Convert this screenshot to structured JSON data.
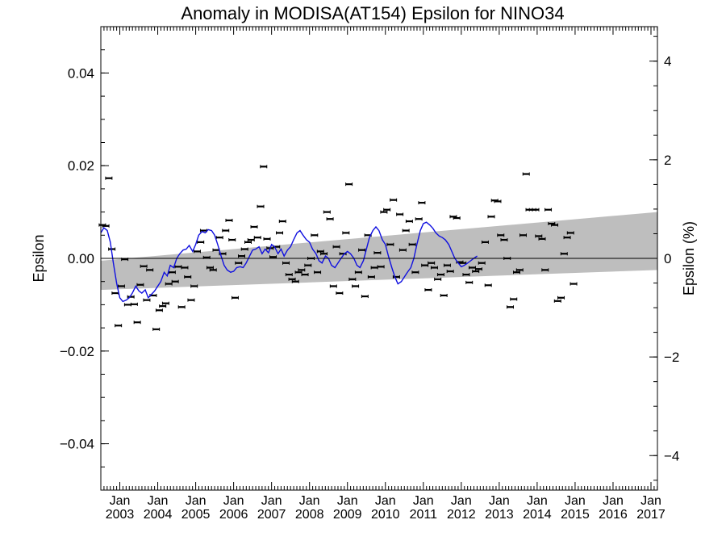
{
  "chart_data": {
    "type": "scatter",
    "title": "Anomaly in MODISA(AT154) Epsilon for NINO34",
    "ylabel": "Epsilon",
    "ylabel_right": "Epsilon (%)",
    "ylim": [
      -0.05,
      0.05
    ],
    "ylim_right": [
      -4.7,
      4.7
    ],
    "xlim": [
      2002.5,
      2017.17
    ],
    "yticks": [
      {
        "value": 0.04,
        "label": "0.04"
      },
      {
        "value": 0.02,
        "label": "0.02"
      },
      {
        "value": 0.0,
        "label": "0.00"
      },
      {
        "value": -0.02,
        "label": "−0.02"
      },
      {
        "value": -0.04,
        "label": "−0.04"
      }
    ],
    "yticks_right": [
      {
        "value": 4,
        "label": "4"
      },
      {
        "value": 2,
        "label": "2"
      },
      {
        "value": 0,
        "label": "0"
      },
      {
        "value": -2,
        "label": "−2"
      },
      {
        "value": -4,
        "label": "−4"
      }
    ],
    "xticks": [
      {
        "value": 2003.0,
        "month": "Jan",
        "year": "2003"
      },
      {
        "value": 2004.0,
        "month": "Jan",
        "year": "2004"
      },
      {
        "value": 2005.0,
        "month": "Jan",
        "year": "2005"
      },
      {
        "value": 2006.0,
        "month": "Jan",
        "year": "2006"
      },
      {
        "value": 2007.0,
        "month": "Jan",
        "year": "2007"
      },
      {
        "value": 2008.0,
        "month": "Jan",
        "year": "2008"
      },
      {
        "value": 2009.0,
        "month": "Jan",
        "year": "2009"
      },
      {
        "value": 2010.0,
        "month": "Jan",
        "year": "2010"
      },
      {
        "value": 2011.0,
        "month": "Jan",
        "year": "2011"
      },
      {
        "value": 2012.0,
        "month": "Jan",
        "year": "2012"
      },
      {
        "value": 2013.0,
        "month": "Jan",
        "year": "2013"
      },
      {
        "value": 2014.0,
        "month": "Jan",
        "year": "2014"
      },
      {
        "value": 2015.0,
        "month": "Jan",
        "year": "2015"
      },
      {
        "value": 2016.0,
        "month": "Jan",
        "year": "2016"
      },
      {
        "value": 2017.0,
        "month": "Jan",
        "year": "2017"
      }
    ],
    "band": {
      "start": {
        "x": 2002.5,
        "upper": -0.0005,
        "lower": -0.0068
      },
      "end": {
        "x": 2017.17,
        "upper": 0.01,
        "lower": -0.0025
      }
    },
    "reference_line_y": 0.0,
    "points": [
      [
        2002.54,
        0.0072
      ],
      [
        2002.63,
        0.007
      ],
      [
        2002.71,
        0.0173
      ],
      [
        2002.79,
        0.002
      ],
      [
        2002.88,
        -0.0075
      ],
      [
        2002.96,
        -0.0145
      ],
      [
        2003.04,
        -0.006
      ],
      [
        2003.13,
        -0.0002
      ],
      [
        2003.21,
        -0.01
      ],
      [
        2003.29,
        -0.0083
      ],
      [
        2003.38,
        -0.0099
      ],
      [
        2003.46,
        -0.0138
      ],
      [
        2003.54,
        -0.0057
      ],
      [
        2003.63,
        -0.0017
      ],
      [
        2003.71,
        -0.009
      ],
      [
        2003.79,
        -0.0025
      ],
      [
        2003.88,
        -0.008
      ],
      [
        2003.96,
        -0.0153
      ],
      [
        2004.04,
        -0.0112
      ],
      [
        2004.13,
        -0.0103
      ],
      [
        2004.21,
        -0.0097
      ],
      [
        2004.29,
        -0.0055
      ],
      [
        2004.38,
        -0.003
      ],
      [
        2004.46,
        -0.005
      ],
      [
        2004.54,
        -0.0018
      ],
      [
        2004.63,
        -0.0105
      ],
      [
        2004.71,
        -0.002
      ],
      [
        2004.79,
        -0.004
      ],
      [
        2004.88,
        -0.009
      ],
      [
        2004.96,
        -0.006
      ],
      [
        2005.04,
        0.0015
      ],
      [
        2005.13,
        0.0035
      ],
      [
        2005.21,
        0.006
      ],
      [
        2005.29,
        0.0002
      ],
      [
        2005.38,
        -0.002
      ],
      [
        2005.46,
        -0.0025
      ],
      [
        2005.54,
        0.0018
      ],
      [
        2005.63,
        0.0045
      ],
      [
        2005.71,
        0.001
      ],
      [
        2005.79,
        0.006
      ],
      [
        2005.88,
        0.0082
      ],
      [
        2005.96,
        0.004
      ],
      [
        2006.04,
        -0.0085
      ],
      [
        2006.13,
        -0.001
      ],
      [
        2006.21,
        0.0005
      ],
      [
        2006.29,
        0.002
      ],
      [
        2006.38,
        0.0035
      ],
      [
        2006.46,
        0.004
      ],
      [
        2006.54,
        0.0068
      ],
      [
        2006.63,
        0.0045
      ],
      [
        2006.71,
        0.0112
      ],
      [
        2006.79,
        0.0198
      ],
      [
        2006.88,
        0.0042
      ],
      [
        2006.96,
        0.0022
      ],
      [
        2007.04,
        0.0003
      ],
      [
        2007.13,
        0.0025
      ],
      [
        2007.21,
        0.0055
      ],
      [
        2007.29,
        0.008
      ],
      [
        2007.38,
        -0.001
      ],
      [
        2007.46,
        -0.0035
      ],
      [
        2007.54,
        -0.0045
      ],
      [
        2007.63,
        -0.005
      ],
      [
        2007.71,
        -0.003
      ],
      [
        2007.79,
        -0.0025
      ],
      [
        2007.88,
        -0.0035
      ],
      [
        2007.96,
        -0.0015
      ],
      [
        2008.04,
        0.0
      ],
      [
        2008.13,
        0.005
      ],
      [
        2008.21,
        -0.003
      ],
      [
        2008.29,
        0.0015
      ],
      [
        2008.38,
        0.001
      ],
      [
        2008.46,
        0.01
      ],
      [
        2008.54,
        0.0085
      ],
      [
        2008.63,
        -0.006
      ],
      [
        2008.71,
        0.0025
      ],
      [
        2008.79,
        -0.0075
      ],
      [
        2008.88,
        0.001
      ],
      [
        2008.96,
        0.0055
      ],
      [
        2009.04,
        0.016
      ],
      [
        2009.13,
        -0.0045
      ],
      [
        2009.21,
        -0.006
      ],
      [
        2009.29,
        -0.003
      ],
      [
        2009.38,
        0.0018
      ],
      [
        2009.46,
        -0.0082
      ],
      [
        2009.54,
        0.005
      ],
      [
        2009.63,
        -0.004
      ],
      [
        2009.71,
        -0.002
      ],
      [
        2009.79,
        0.0012
      ],
      [
        2009.88,
        -0.0018
      ],
      [
        2009.96,
        0.01
      ],
      [
        2010.04,
        0.0105
      ],
      [
        2010.13,
        0.003
      ],
      [
        2010.21,
        0.0126
      ],
      [
        2010.29,
        -0.004
      ],
      [
        2010.38,
        0.0095
      ],
      [
        2010.46,
        0.0018
      ],
      [
        2010.54,
        0.006
      ],
      [
        2010.63,
        0.008
      ],
      [
        2010.71,
        0.003
      ],
      [
        2010.79,
        -0.003
      ],
      [
        2010.88,
        0.0085
      ],
      [
        2010.96,
        0.012
      ],
      [
        2011.04,
        -0.0015
      ],
      [
        2011.13,
        -0.0068
      ],
      [
        2011.21,
        -0.001
      ],
      [
        2011.29,
        -0.002
      ],
      [
        2011.38,
        -0.0045
      ],
      [
        2011.46,
        -0.0035
      ],
      [
        2011.54,
        -0.008
      ],
      [
        2011.63,
        -0.0015
      ],
      [
        2011.71,
        -0.0028
      ],
      [
        2011.79,
        0.009
      ],
      [
        2011.88,
        0.0087
      ],
      [
        2011.96,
        -0.0008
      ],
      [
        2012.04,
        -0.001
      ],
      [
        2012.13,
        -0.0035
      ],
      [
        2012.21,
        -0.0052
      ],
      [
        2012.29,
        -0.002
      ],
      [
        2012.38,
        -0.0028
      ],
      [
        2012.46,
        -0.0023
      ],
      [
        2012.54,
        -0.001
      ],
      [
        2012.63,
        0.0035
      ],
      [
        2012.71,
        -0.0058
      ],
      [
        2012.79,
        0.009
      ],
      [
        2012.88,
        0.0125
      ],
      [
        2012.96,
        0.0123
      ],
      [
        2013.04,
        0.005
      ],
      [
        2013.13,
        0.004
      ],
      [
        2013.21,
        0.0
      ],
      [
        2013.29,
        -0.0105
      ],
      [
        2013.38,
        -0.0088
      ],
      [
        2013.46,
        -0.003
      ],
      [
        2013.54,
        -0.0025
      ],
      [
        2013.63,
        0.005
      ],
      [
        2013.71,
        0.0182
      ],
      [
        2013.79,
        0.0105
      ],
      [
        2013.88,
        0.0105
      ],
      [
        2013.96,
        0.0105
      ],
      [
        2014.04,
        0.0048
      ],
      [
        2014.13,
        0.0042
      ],
      [
        2014.21,
        -0.0025
      ],
      [
        2014.29,
        0.0105
      ],
      [
        2014.38,
        0.0075
      ],
      [
        2014.46,
        0.0072
      ],
      [
        2014.54,
        -0.0092
      ],
      [
        2014.63,
        -0.0085
      ],
      [
        2014.71,
        0.001
      ],
      [
        2014.79,
        0.0045
      ],
      [
        2014.88,
        0.0055
      ],
      [
        2014.96,
        -0.0055
      ]
    ],
    "smoothed": [
      [
        2002.5,
        0.0055
      ],
      [
        2002.58,
        0.0066
      ],
      [
        2002.67,
        0.006
      ],
      [
        2002.75,
        0.0035
      ],
      [
        2002.83,
        -0.001
      ],
      [
        2002.92,
        -0.0055
      ],
      [
        2003.0,
        -0.0085
      ],
      [
        2003.08,
        -0.0093
      ],
      [
        2003.17,
        -0.009
      ],
      [
        2003.25,
        -0.0085
      ],
      [
        2003.33,
        -0.0075
      ],
      [
        2003.42,
        -0.006
      ],
      [
        2003.5,
        -0.007
      ],
      [
        2003.58,
        -0.0075
      ],
      [
        2003.67,
        -0.0068
      ],
      [
        2003.75,
        -0.0085
      ],
      [
        2003.83,
        -0.0078
      ],
      [
        2003.92,
        -0.007
      ],
      [
        2004.0,
        -0.006
      ],
      [
        2004.08,
        -0.005
      ],
      [
        2004.17,
        -0.003
      ],
      [
        2004.25,
        -0.0038
      ],
      [
        2004.33,
        -0.0015
      ],
      [
        2004.42,
        -0.002
      ],
      [
        2004.5,
        0.0
      ],
      [
        2004.58,
        0.001
      ],
      [
        2004.67,
        0.0018
      ],
      [
        2004.75,
        0.002
      ],
      [
        2004.83,
        0.0028
      ],
      [
        2004.92,
        0.0015
      ],
      [
        2005.0,
        0.003
      ],
      [
        2005.08,
        0.005
      ],
      [
        2005.17,
        0.0058
      ],
      [
        2005.25,
        0.0055
      ],
      [
        2005.33,
        0.0062
      ],
      [
        2005.42,
        0.006
      ],
      [
        2005.5,
        0.005
      ],
      [
        2005.58,
        0.003
      ],
      [
        2005.67,
        0.0005
      ],
      [
        2005.75,
        -0.0015
      ],
      [
        2005.83,
        -0.0025
      ],
      [
        2005.92,
        -0.003
      ],
      [
        2006.0,
        -0.0028
      ],
      [
        2006.08,
        -0.002
      ],
      [
        2006.17,
        -0.0018
      ],
      [
        2006.25,
        -0.002
      ],
      [
        2006.33,
        -0.001
      ],
      [
        2006.42,
        0.0005
      ],
      [
        2006.5,
        0.0018
      ],
      [
        2006.58,
        0.002
      ],
      [
        2006.67,
        0.0025
      ],
      [
        2006.75,
        0.001
      ],
      [
        2006.83,
        0.002
      ],
      [
        2006.92,
        0.0012
      ],
      [
        2007.0,
        0.003
      ],
      [
        2007.08,
        0.0025
      ],
      [
        2007.17,
        0.001
      ],
      [
        2007.25,
        0.002
      ],
      [
        2007.33,
        0.0005
      ],
      [
        2007.42,
        0.0018
      ],
      [
        2007.5,
        0.0025
      ],
      [
        2007.58,
        0.004
      ],
      [
        2007.67,
        0.0055
      ],
      [
        2007.75,
        0.006
      ],
      [
        2007.83,
        0.005
      ],
      [
        2007.92,
        0.004
      ],
      [
        2008.0,
        0.0035
      ],
      [
        2008.08,
        0.002
      ],
      [
        2008.17,
        0.001
      ],
      [
        2008.25,
        -0.0005
      ],
      [
        2008.33,
        -0.001
      ],
      [
        2008.42,
        0.0005
      ],
      [
        2008.5,
        0.0
      ],
      [
        2008.58,
        -0.0015
      ],
      [
        2008.67,
        -0.002
      ],
      [
        2008.75,
        -0.001
      ],
      [
        2008.83,
        0.0
      ],
      [
        2008.92,
        0.001
      ],
      [
        2009.0,
        0.0015
      ],
      [
        2009.08,
        0.001
      ],
      [
        2009.17,
        0.0
      ],
      [
        2009.25,
        -0.0015
      ],
      [
        2009.33,
        -0.002
      ],
      [
        2009.42,
        -0.0005
      ],
      [
        2009.5,
        0.002
      ],
      [
        2009.58,
        0.0045
      ],
      [
        2009.67,
        0.006
      ],
      [
        2009.75,
        0.0068
      ],
      [
        2009.83,
        0.006
      ],
      [
        2009.92,
        0.004
      ],
      [
        2010.0,
        0.003
      ],
      [
        2010.08,
        0.0005
      ],
      [
        2010.17,
        -0.002
      ],
      [
        2010.25,
        -0.004
      ],
      [
        2010.33,
        -0.0055
      ],
      [
        2010.42,
        -0.005
      ],
      [
        2010.5,
        -0.004
      ],
      [
        2010.58,
        -0.003
      ],
      [
        2010.67,
        -0.002
      ],
      [
        2010.75,
        0.0
      ],
      [
        2010.83,
        0.003
      ],
      [
        2010.92,
        0.006
      ],
      [
        2011.0,
        0.0075
      ],
      [
        2011.08,
        0.0078
      ],
      [
        2011.17,
        0.0072
      ],
      [
        2011.25,
        0.0065
      ],
      [
        2011.33,
        0.0055
      ],
      [
        2011.42,
        0.0048
      ],
      [
        2011.5,
        0.0045
      ],
      [
        2011.58,
        0.004
      ],
      [
        2011.67,
        0.003
      ],
      [
        2011.75,
        0.0015
      ],
      [
        2011.83,
        0.0
      ],
      [
        2011.92,
        -0.001
      ],
      [
        2012.0,
        -0.0018
      ],
      [
        2012.08,
        -0.0015
      ],
      [
        2012.17,
        -0.001
      ],
      [
        2012.25,
        -0.0005
      ],
      [
        2012.33,
        0.0
      ],
      [
        2012.42,
        0.0005
      ]
    ]
  }
}
